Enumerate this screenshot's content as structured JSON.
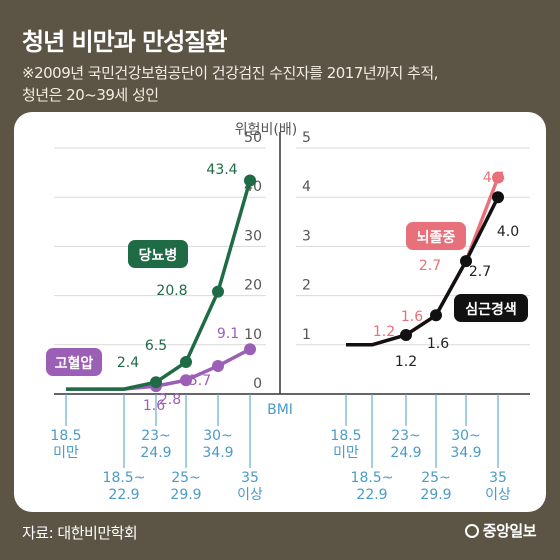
{
  "title": "청년 비만과 만성질환",
  "subtitle_line1": "※2009년 국민건강보험공단이 건강검진 수진자를 2017년까지 추적,",
  "subtitle_line2": "청년은 20~39세 성인",
  "source": "자료: 대한비만학회",
  "brand": "중앙일보",
  "colors": {
    "background": "#5c5545",
    "green": "#1e6b46",
    "purple": "#9b5fb5",
    "pink": "#e8707a",
    "black": "#111111",
    "bmi_blue": "#4a9bc9"
  },
  "chart_data": [
    {
      "type": "line",
      "ylabel": "위험비(배)",
      "ylim": [
        0,
        50
      ],
      "yticks": [
        0,
        10,
        20,
        30,
        40,
        50
      ],
      "xlabel": "BMI",
      "categories": [
        [
          "18.5",
          "미만"
        ],
        [
          "18.5~",
          "22.9"
        ],
        [
          "23~",
          "24.9"
        ],
        [
          "25~",
          "29.9"
        ],
        [
          "30~",
          "34.9"
        ],
        [
          "35",
          "이상"
        ]
      ],
      "series": [
        {
          "name": "당뇨병",
          "color": "#1e6b46",
          "values": [
            null,
            null,
            null,
            null,
            null,
            43.4
          ],
          "labels": [
            "",
            "",
            "2.4",
            "6.5",
            "20.8",
            "43.4"
          ]
        },
        {
          "name": "고혈압",
          "color": "#9b5fb5",
          "values": [
            null,
            null,
            null,
            null,
            null,
            9.1
          ],
          "labels": [
            "",
            "",
            "1.6",
            "2.8",
            "5.7",
            "9.1"
          ]
        }
      ]
    },
    {
      "type": "line",
      "ylim": [
        0,
        5
      ],
      "yticks": [
        1,
        2,
        3,
        4,
        5
      ],
      "categories": [
        [
          "18.5",
          "미만"
        ],
        [
          "18.5~",
          "22.9"
        ],
        [
          "23~",
          "24.9"
        ],
        [
          "25~",
          "29.9"
        ],
        [
          "30~",
          "34.9"
        ],
        [
          "35",
          "이상"
        ]
      ],
      "series": [
        {
          "name": "뇌졸중",
          "color": "#e8707a",
          "values": [
            null,
            null,
            1.2,
            1.6,
            2.7,
            4.4
          ],
          "labels": [
            "",
            "",
            "1.2",
            "1.6",
            "2.7",
            "4.4"
          ]
        },
        {
          "name": "심근경색",
          "color": "#111111",
          "values": [
            null,
            null,
            1.2,
            1.6,
            2.7,
            4.0
          ],
          "labels": [
            "",
            "",
            "1.2",
            "1.6",
            "2.7",
            "4.0"
          ]
        }
      ]
    }
  ]
}
